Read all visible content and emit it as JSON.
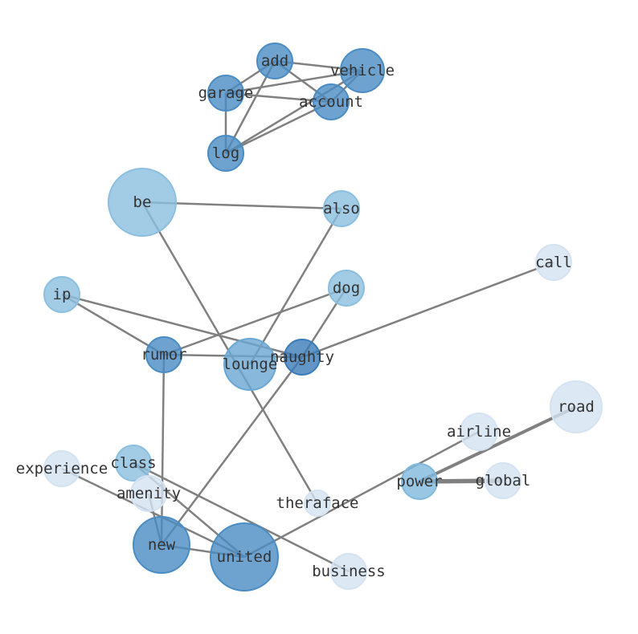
{
  "nodes": [
    {
      "id": "add",
      "color": "#4a8cc4"
    },
    {
      "id": "vehicle",
      "color": "#4a8cc4"
    },
    {
      "id": "garage",
      "color": "#4a8cc4"
    },
    {
      "id": "account",
      "color": "#4a8cc4"
    },
    {
      "id": "log",
      "color": "#4a8cc4"
    },
    {
      "id": "be",
      "color": "#8bbfdf"
    },
    {
      "id": "also",
      "color": "#8bbfdf"
    },
    {
      "id": "call",
      "color": "#d4e2f2"
    },
    {
      "id": "ip",
      "color": "#8bbfdf"
    },
    {
      "id": "dog",
      "color": "#8bbfdf"
    },
    {
      "id": "rumor",
      "color": "#4a8cc4"
    },
    {
      "id": "lounge",
      "color": "#6aa8d4"
    },
    {
      "id": "naughty",
      "color": "#3a7cb9"
    },
    {
      "id": "road",
      "color": "#d4e2f2"
    },
    {
      "id": "airline",
      "color": "#d4e2f2"
    },
    {
      "id": "power",
      "color": "#80b9dc"
    },
    {
      "id": "global",
      "color": "#d4e2f2"
    },
    {
      "id": "experience",
      "color": "#d4e2f2"
    },
    {
      "id": "class",
      "color": "#8bbfdf"
    },
    {
      "id": "amenity",
      "color": "#d4e2f2"
    },
    {
      "id": "theraface",
      "color": "#d4e2f2"
    },
    {
      "id": "new",
      "color": "#4a8cc4"
    },
    {
      "id": "united",
      "color": "#4a8cc4"
    },
    {
      "id": "business",
      "color": "#d4e2f2"
    }
  ],
  "edges": [
    [
      "add",
      "garage",
      1
    ],
    [
      "add",
      "vehicle",
      1
    ],
    [
      "add",
      "account",
      1
    ],
    [
      "add",
      "log",
      1
    ],
    [
      "garage",
      "vehicle",
      1
    ],
    [
      "garage",
      "account",
      1
    ],
    [
      "garage",
      "log",
      1
    ],
    [
      "log",
      "vehicle",
      1
    ],
    [
      "log",
      "account",
      1
    ],
    [
      "account",
      "vehicle",
      1
    ],
    [
      "be",
      "also",
      1
    ],
    [
      "also",
      "lounge",
      1
    ],
    [
      "be",
      "theraface",
      1
    ],
    [
      "ip",
      "rumor",
      1
    ],
    [
      "ip",
      "naughty",
      1
    ],
    [
      "dog",
      "rumor",
      1
    ],
    [
      "dog",
      "naughty",
      1
    ],
    [
      "rumor",
      "naughty",
      1
    ],
    [
      "call",
      "naughty",
      1
    ],
    [
      "naughty",
      "new",
      1
    ],
    [
      "rumor",
      "new",
      1
    ],
    [
      "experience",
      "united",
      1
    ],
    [
      "class",
      "business",
      1
    ],
    [
      "class",
      "united",
      1
    ],
    [
      "amenity",
      "new",
      1
    ],
    [
      "new",
      "united",
      1
    ],
    [
      "united",
      "airline",
      1
    ],
    [
      "power",
      "road",
      2
    ],
    [
      "power",
      "global",
      3
    ]
  ],
  "edge_color": "#808080"
}
